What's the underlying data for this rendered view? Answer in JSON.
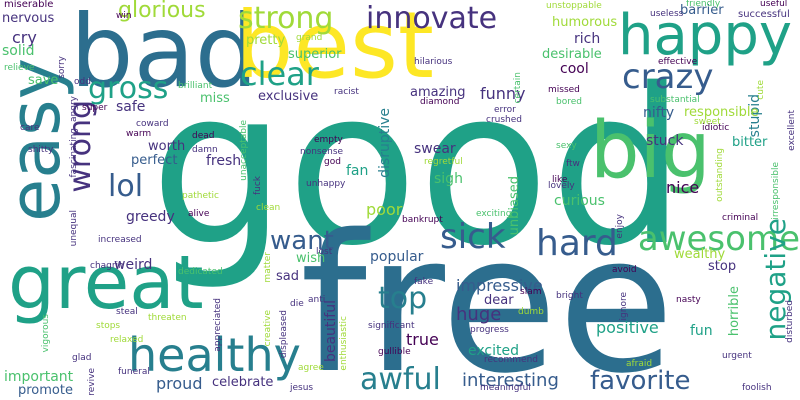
{
  "palette": {
    "dark_purple": "#46327e",
    "blue": "#365c8d",
    "steel": "#277f8e",
    "teal": "#1fa187",
    "green": "#4ac16d",
    "lime": "#a0da39",
    "yellow": "#fde725",
    "deep": "#440154"
  },
  "words": [
    {
      "text": "good",
      "color": "#1fa187"
    },
    {
      "text": "free",
      "color": "#2c6e8e"
    },
    {
      "text": "bad",
      "color": "#2c6e8e"
    },
    {
      "text": "best",
      "color": "#fde725"
    },
    {
      "text": "big",
      "color": "#4ac16d"
    },
    {
      "text": "great",
      "color": "#1fa187"
    },
    {
      "text": "easy",
      "color": "#277f8e"
    },
    {
      "text": "happy",
      "color": "#1fa187"
    },
    {
      "text": "healthy",
      "color": "#277f8e"
    },
    {
      "text": "awesome",
      "color": "#4ac16d"
    },
    {
      "text": "crazy",
      "color": "#365c8d"
    },
    {
      "text": "strong",
      "color": "#a0da39"
    },
    {
      "text": "clear",
      "color": "#1fa187"
    },
    {
      "text": "innovate",
      "color": "#46327e"
    },
    {
      "text": "sick",
      "color": "#365c8d"
    },
    {
      "text": "hard",
      "color": "#365c8d"
    },
    {
      "text": "awful",
      "color": "#277f8e"
    },
    {
      "text": "wrong",
      "color": "#46327e"
    },
    {
      "text": "lol",
      "color": "#365c8d"
    },
    {
      "text": "want",
      "color": "#365c8d"
    },
    {
      "text": "top",
      "color": "#277f8e"
    },
    {
      "text": "gross",
      "color": "#1fa187"
    },
    {
      "text": "negative",
      "color": "#1fa187"
    },
    {
      "text": "favorite",
      "color": "#365c8d"
    },
    {
      "text": "glorious",
      "color": "#a0da39"
    },
    {
      "text": "interesting",
      "color": "#365c8d"
    },
    {
      "text": "beautiful",
      "color": "#46327e"
    },
    {
      "text": "funny",
      "color": "#46327e"
    },
    {
      "text": "impressive",
      "color": "#365c8d"
    },
    {
      "text": "poor",
      "color": "#a0da39"
    },
    {
      "text": "huge",
      "color": "#46327e"
    },
    {
      "text": "true",
      "color": "#440154"
    },
    {
      "text": "positive",
      "color": "#1fa187"
    },
    {
      "text": "nice",
      "color": "#440154"
    },
    {
      "text": "popular",
      "color": "#365c8d"
    },
    {
      "text": "disruptive",
      "color": "#277f8e"
    },
    {
      "text": "sigh",
      "color": "#4ac16d"
    },
    {
      "text": "swear",
      "color": "#46327e"
    },
    {
      "text": "fan",
      "color": "#1fa187"
    },
    {
      "text": "stuck",
      "color": "#46327e"
    },
    {
      "text": "bitter",
      "color": "#1fa187"
    },
    {
      "text": "stupid",
      "color": "#277f8e"
    },
    {
      "text": "nifty",
      "color": "#365c8d"
    },
    {
      "text": "responsible",
      "color": "#a0da39"
    },
    {
      "text": "fresh",
      "color": "#46327e"
    },
    {
      "text": "greedy",
      "color": "#46327e"
    },
    {
      "text": "perfect",
      "color": "#365c8d"
    },
    {
      "text": "worth",
      "color": "#46327e"
    },
    {
      "text": "weird",
      "color": "#46327e"
    },
    {
      "text": "sad",
      "color": "#46327e"
    },
    {
      "text": "wish",
      "color": "#4ac16d"
    },
    {
      "text": "proud",
      "color": "#365c8d"
    },
    {
      "text": "celebrate",
      "color": "#46327e"
    },
    {
      "text": "excited",
      "color": "#1fa187"
    },
    {
      "text": "promote",
      "color": "#365c8d"
    },
    {
      "text": "important",
      "color": "#4ac16d"
    },
    {
      "text": "exclusive",
      "color": "#46327e"
    },
    {
      "text": "amazing",
      "color": "#46327e"
    },
    {
      "text": "cool",
      "color": "#440154"
    },
    {
      "text": "safe",
      "color": "#46327e"
    },
    {
      "text": "miss",
      "color": "#4ac16d"
    },
    {
      "text": "save",
      "color": "#4ac16d"
    },
    {
      "text": "cry",
      "color": "#46327e"
    },
    {
      "text": "solid",
      "color": "#4ac16d"
    },
    {
      "text": "nervous",
      "color": "#46327e"
    },
    {
      "text": "rich",
      "color": "#46327e"
    },
    {
      "text": "desirable",
      "color": "#4ac16d"
    },
    {
      "text": "humorous",
      "color": "#a0da39"
    },
    {
      "text": "barrier",
      "color": "#365c8d"
    },
    {
      "text": "curious",
      "color": "#4ac16d"
    },
    {
      "text": "unbiased",
      "color": "#4ac16d"
    },
    {
      "text": "pretty",
      "color": "#a0da39"
    },
    {
      "text": "superior",
      "color": "#4ac16d"
    },
    {
      "text": "dear",
      "color": "#46327e"
    },
    {
      "text": "fun",
      "color": "#1fa187"
    },
    {
      "text": "stop",
      "color": "#46327e"
    },
    {
      "text": "wealthy",
      "color": "#a0da39"
    },
    {
      "text": "horrible",
      "color": "#4ac16d"
    },
    {
      "text": "successful",
      "color": "#46327e"
    },
    {
      "text": "miserable",
      "color": "#440154"
    },
    {
      "text": "win",
      "color": "#440154"
    },
    {
      "text": "useful",
      "color": "#440154"
    },
    {
      "text": "friendly",
      "color": "#4ac16d"
    },
    {
      "text": "unstoppable",
      "color": "#a0da39"
    },
    {
      "text": "useless",
      "color": "#46327e"
    },
    {
      "text": "effective",
      "color": "#440154"
    },
    {
      "text": "relieve",
      "color": "#4ac16d"
    },
    {
      "text": "sorry",
      "color": "#46327e"
    },
    {
      "text": "grand",
      "color": "#a0da39"
    },
    {
      "text": "hilarious",
      "color": "#46327e"
    },
    {
      "text": "certain",
      "color": "#4ac16d"
    },
    {
      "text": "odd",
      "color": "#46327e"
    },
    {
      "text": "brilliant",
      "color": "#4ac16d"
    },
    {
      "text": "racist",
      "color": "#46327e"
    },
    {
      "text": "diamond",
      "color": "#440154"
    },
    {
      "text": "missed",
      "color": "#440154"
    },
    {
      "text": "bored",
      "color": "#4ac16d"
    },
    {
      "text": "substantial",
      "color": "#4ac16d"
    },
    {
      "text": "cute",
      "color": "#a0da39"
    },
    {
      "text": "angry",
      "color": "#46327e"
    },
    {
      "text": "super",
      "color": "#440154"
    },
    {
      "text": "coward",
      "color": "#46327e"
    },
    {
      "text": "error",
      "color": "#46327e"
    },
    {
      "text": "crushed",
      "color": "#46327e"
    },
    {
      "text": "sweet",
      "color": "#a0da39"
    },
    {
      "text": "idiotic",
      "color": "#440154"
    },
    {
      "text": "excellent",
      "color": "#46327e"
    },
    {
      "text": "care",
      "color": "#46327e"
    },
    {
      "text": "warm",
      "color": "#440154"
    },
    {
      "text": "dead",
      "color": "#440154"
    },
    {
      "text": "damn",
      "color": "#46327e"
    },
    {
      "text": "empty",
      "color": "#440154"
    },
    {
      "text": "nonsense",
      "color": "#46327e"
    },
    {
      "text": "god",
      "color": "#440154"
    },
    {
      "text": "unhappy",
      "color": "#46327e"
    },
    {
      "text": "regretful",
      "color": "#a0da39"
    },
    {
      "text": "sexy",
      "color": "#4ac16d"
    },
    {
      "text": "ftw",
      "color": "#46327e"
    },
    {
      "text": "like",
      "color": "#440154"
    },
    {
      "text": "lovely",
      "color": "#46327e"
    },
    {
      "text": "outstanding",
      "color": "#a0da39"
    },
    {
      "text": "irresponsible",
      "color": "#4ac16d"
    },
    {
      "text": "fascinating",
      "color": "#46327e"
    },
    {
      "text": "shitty",
      "color": "#46327e"
    },
    {
      "text": "unacceptable",
      "color": "#4ac16d"
    },
    {
      "text": "fuck",
      "color": "#46327e"
    },
    {
      "text": "unequal",
      "color": "#46327e"
    },
    {
      "text": "pathetic",
      "color": "#a0da39"
    },
    {
      "text": "clean",
      "color": "#a0da39"
    },
    {
      "text": "bankrupt",
      "color": "#440154"
    },
    {
      "text": "exciting",
      "color": "#4ac16d"
    },
    {
      "text": "enjoy",
      "color": "#46327e"
    },
    {
      "text": "criminal",
      "color": "#440154"
    },
    {
      "text": "increased",
      "color": "#46327e"
    },
    {
      "text": "alive",
      "color": "#440154"
    },
    {
      "text": "chagrin",
      "color": "#46327e"
    },
    {
      "text": "dedicated",
      "color": "#4ac16d"
    },
    {
      "text": "matter",
      "color": "#a0da39"
    },
    {
      "text": "lost",
      "color": "#46327e"
    },
    {
      "text": "avoid",
      "color": "#440154"
    },
    {
      "text": "fake",
      "color": "#46327e"
    },
    {
      "text": "steal",
      "color": "#46327e"
    },
    {
      "text": "anti",
      "color": "#46327e"
    },
    {
      "text": "die",
      "color": "#46327e"
    },
    {
      "text": "slam",
      "color": "#440154"
    },
    {
      "text": "bright",
      "color": "#46327e"
    },
    {
      "text": "ignore",
      "color": "#46327e"
    },
    {
      "text": "nasty",
      "color": "#440154"
    },
    {
      "text": "dumb",
      "color": "#a0da39"
    },
    {
      "text": "disturbed",
      "color": "#46327e"
    },
    {
      "text": "stops",
      "color": "#a0da39"
    },
    {
      "text": "threaten",
      "color": "#a0da39"
    },
    {
      "text": "appreciated",
      "color": "#46327e"
    },
    {
      "text": "creative",
      "color": "#a0da39"
    },
    {
      "text": "displeased",
      "color": "#46327e"
    },
    {
      "text": "enthusiastic",
      "color": "#a0da39"
    },
    {
      "text": "significant",
      "color": "#46327e"
    },
    {
      "text": "progress",
      "color": "#46327e"
    },
    {
      "text": "relaxed",
      "color": "#a0da39"
    },
    {
      "text": "vigorous",
      "color": "#4ac16d"
    },
    {
      "text": "glad",
      "color": "#46327e"
    },
    {
      "text": "gullible",
      "color": "#440154"
    },
    {
      "text": "recommend",
      "color": "#46327e"
    },
    {
      "text": "afraid",
      "color": "#a0da39"
    },
    {
      "text": "urgent",
      "color": "#46327e"
    },
    {
      "text": "foolish",
      "color": "#46327e"
    },
    {
      "text": "revive",
      "color": "#46327e"
    },
    {
      "text": "funeral",
      "color": "#46327e"
    },
    {
      "text": "agree",
      "color": "#a0da39"
    },
    {
      "text": "jesus",
      "color": "#46327e"
    },
    {
      "text": "meaningful",
      "color": "#46327e"
    }
  ]
}
